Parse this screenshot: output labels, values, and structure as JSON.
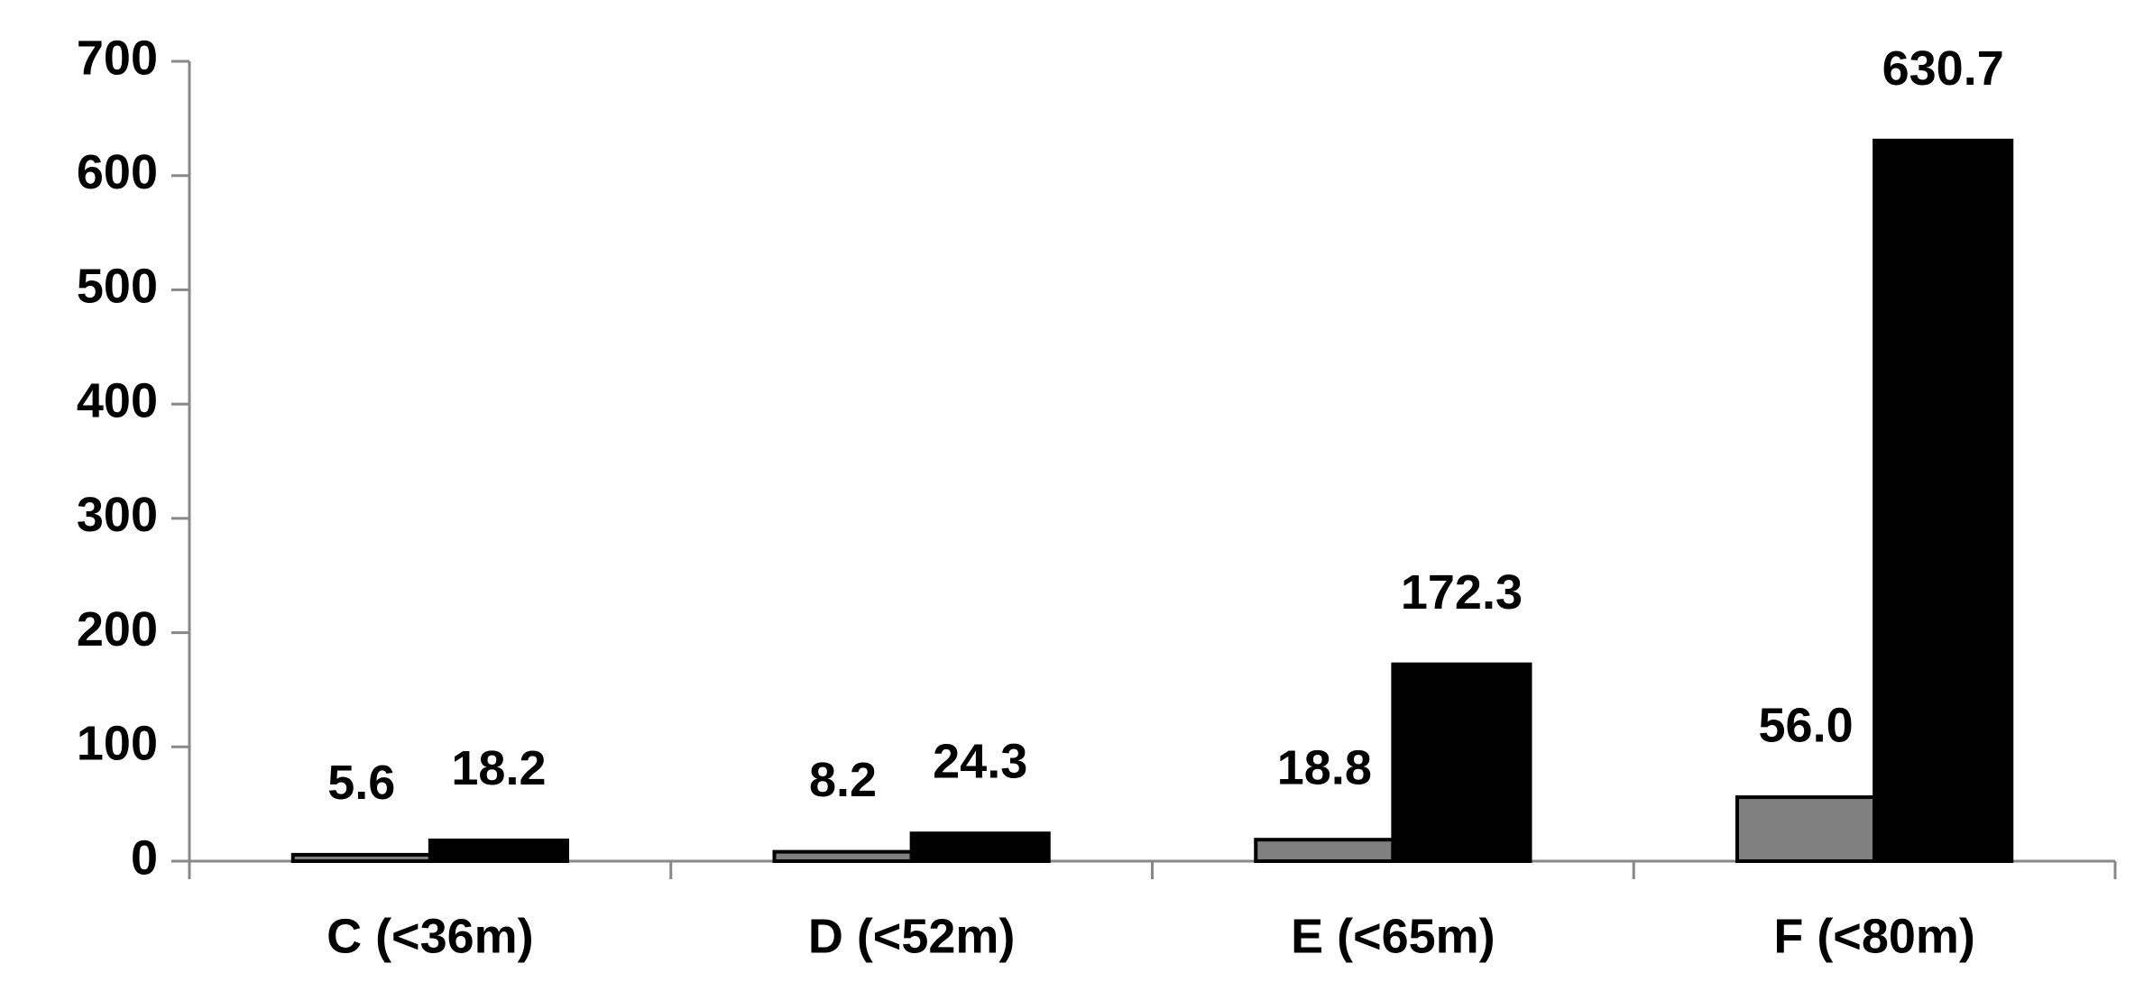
{
  "chart_data": {
    "type": "bar",
    "categories": [
      "C (<36m)",
      "D (<52m)",
      "E (<65m)",
      "F (<80m)"
    ],
    "series": [
      {
        "color": "#808080",
        "values": [
          5.6,
          8.2,
          18.8,
          56.0
        ],
        "value_labels": [
          "5.6",
          "8.2",
          "18.8",
          "56.0"
        ]
      },
      {
        "color": "#000000",
        "values": [
          18.2,
          24.3,
          172.3,
          630.7
        ],
        "value_labels": [
          "18.2",
          "24.3",
          "172.3",
          "630.7"
        ]
      }
    ],
    "ylim": [
      0,
      700
    ],
    "yticks": [
      0,
      100,
      200,
      300,
      400,
      500,
      600,
      700
    ],
    "grid": false
  }
}
